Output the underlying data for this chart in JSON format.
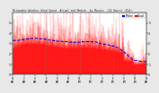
{
  "title": "Milwaukee Weather Wind Speed  Actual and Median  by Minute  (24 Hours) (Old)",
  "ylabel_right_ticks": [
    "0",
    "1",
    "2",
    "3",
    "4",
    "5"
  ],
  "ylim": [
    0,
    6
  ],
  "yticks": [
    0,
    1,
    2,
    3,
    4,
    5
  ],
  "background_color": "#e8e8e8",
  "plot_bg": "#ffffff",
  "bar_color": "#ff0000",
  "median_color": "#0000cc",
  "vline_color": "#888888",
  "n_points": 1440,
  "seed": 99,
  "legend_actual_color": "#ff0000",
  "legend_median_color": "#0000cc"
}
